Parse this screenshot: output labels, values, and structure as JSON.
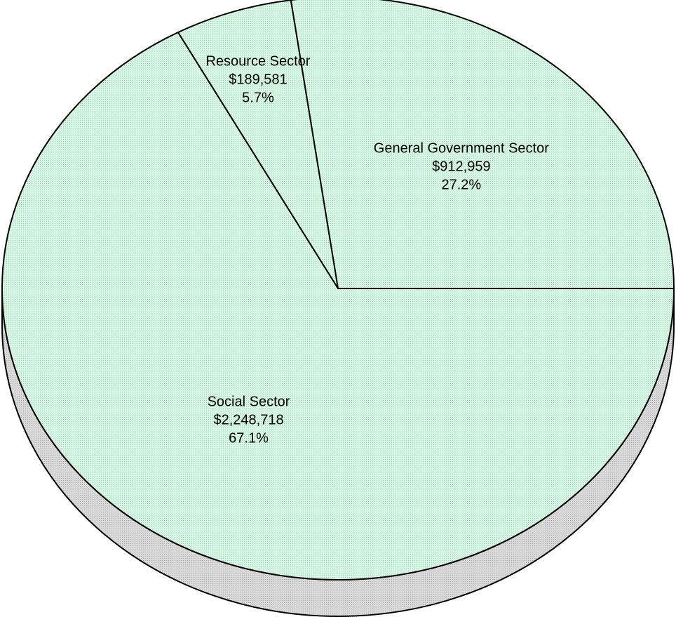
{
  "colors": {
    "slice_fill": "#d6f5e3",
    "side_fill": "#d4d4d4",
    "outline": "#000000"
  },
  "chart_data": {
    "type": "pie",
    "style": "3d",
    "slices": [
      {
        "name": "General Government Sector",
        "value": 912959,
        "value_label": "$912,959",
        "percent_label": "27.2%"
      },
      {
        "name": "Resource Sector",
        "value": 189581,
        "value_label": "$189,581",
        "percent_label": "5.7%"
      },
      {
        "name": "Social Sector",
        "value": 2248718,
        "value_label": "$2,248,718",
        "percent_label": "67.1%"
      }
    ]
  }
}
